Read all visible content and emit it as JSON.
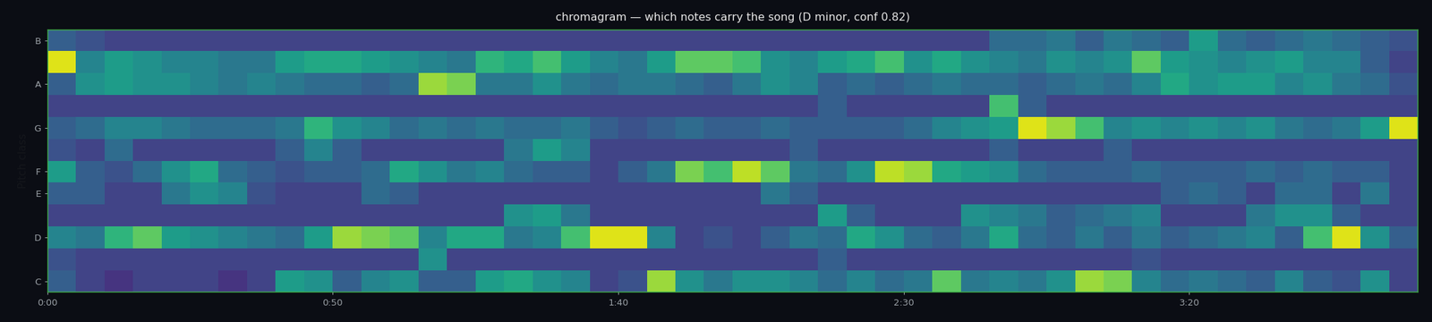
{
  "chart_data": {
    "type": "heatmap",
    "title": "chromagram — which notes carry the song (D minor, conf 0.82)",
    "y_label": "Pitch class",
    "categories": [
      "C",
      null,
      "D",
      null,
      "E",
      "F",
      null,
      "G",
      null,
      "A",
      null,
      "B"
    ],
    "x_edges": [
      0,
      5,
      10,
      15,
      20,
      25,
      30,
      35,
      40,
      45,
      50,
      55,
      60,
      65,
      70,
      75,
      80,
      85,
      90,
      95,
      100,
      105,
      110,
      115,
      120,
      125,
      130,
      135,
      140,
      145,
      150,
      155,
      160,
      165,
      170,
      175,
      180,
      185,
      190,
      195,
      200,
      205,
      210,
      215,
      220,
      225,
      230,
      235,
      240
    ],
    "xlim": [
      0,
      240
    ],
    "xticks": [
      {
        "value": 0,
        "label": "0:00"
      },
      {
        "value": 50,
        "label": "0:50"
      },
      {
        "value": 100,
        "label": "1:40"
      },
      {
        "value": 150,
        "label": "2:30"
      },
      {
        "value": 200,
        "label": "3:20"
      }
    ],
    "color": "viridis",
    "color_range": [
      0,
      1
    ],
    "cells": [
      [
        0.3,
        0.2,
        0.15,
        0.2,
        0.2,
        0.2,
        0.15,
        0.2,
        0.55,
        0.5,
        0.3,
        0.45,
        0.5,
        0.3,
        0.3,
        0.55,
        0.6,
        0.5,
        0.45,
        0.2,
        0.25,
        0.85,
        0.5,
        0.4,
        0.5,
        0.5,
        0.45,
        0.35,
        0.45,
        0.35,
        0.4,
        0.75,
        0.4,
        0.45,
        0.4,
        0.5,
        0.85,
        0.8,
        0.45,
        0.35,
        0.4,
        0.35,
        0.3,
        0.45,
        0.3,
        0.25,
        0.5,
        0.2
      ],
      [
        0.25,
        0.2,
        0.2,
        0.2,
        0.2,
        0.2,
        0.2,
        0.2,
        0.2,
        0.2,
        0.2,
        0.2,
        0.2,
        0.5,
        0.2,
        0.2,
        0.2,
        0.2,
        0.2,
        0.2,
        0.2,
        0.2,
        0.2,
        0.2,
        0.2,
        0.2,
        0.2,
        0.3,
        0.2,
        0.2,
        0.2,
        0.2,
        0.2,
        0.2,
        0.2,
        0.2,
        0.2,
        0.2,
        0.25,
        0.2,
        0.2,
        0.2,
        0.2,
        0.2,
        0.2,
        0.2,
        0.2,
        0.2
      ],
      [
        0.45,
        0.4,
        0.65,
        0.75,
        0.55,
        0.5,
        0.45,
        0.4,
        0.35,
        0.55,
        0.85,
        0.8,
        0.75,
        0.45,
        0.6,
        0.6,
        0.4,
        0.45,
        0.7,
        0.95,
        0.95,
        0.45,
        0.2,
        0.25,
        0.2,
        0.3,
        0.4,
        0.35,
        0.6,
        0.5,
        0.35,
        0.3,
        0.4,
        0.6,
        0.35,
        0.3,
        0.4,
        0.3,
        0.4,
        0.3,
        0.35,
        0.4,
        0.45,
        0.3,
        0.7,
        0.95,
        0.5,
        0.3
      ],
      [
        0.2,
        0.2,
        0.2,
        0.2,
        0.2,
        0.2,
        0.2,
        0.2,
        0.2,
        0.2,
        0.2,
        0.2,
        0.2,
        0.2,
        0.2,
        0.2,
        0.5,
        0.55,
        0.4,
        0.2,
        0.2,
        0.2,
        0.2,
        0.2,
        0.2,
        0.2,
        0.2,
        0.55,
        0.3,
        0.2,
        0.2,
        0.2,
        0.5,
        0.45,
        0.4,
        0.3,
        0.35,
        0.4,
        0.45,
        0.2,
        0.2,
        0.2,
        0.4,
        0.5,
        0.5,
        0.3,
        0.2,
        0.2
      ],
      [
        0.3,
        0.3,
        0.2,
        0.2,
        0.4,
        0.5,
        0.45,
        0.25,
        0.2,
        0.2,
        0.2,
        0.35,
        0.3,
        0.2,
        0.2,
        0.2,
        0.2,
        0.2,
        0.2,
        0.2,
        0.2,
        0.2,
        0.2,
        0.2,
        0.2,
        0.4,
        0.3,
        0.2,
        0.2,
        0.2,
        0.2,
        0.2,
        0.2,
        0.2,
        0.2,
        0.2,
        0.2,
        0.2,
        0.2,
        0.3,
        0.35,
        0.3,
        0.2,
        0.35,
        0.35,
        0.2,
        0.4,
        0.2
      ],
      [
        0.55,
        0.3,
        0.25,
        0.35,
        0.5,
        0.6,
        0.35,
        0.3,
        0.25,
        0.3,
        0.3,
        0.35,
        0.6,
        0.5,
        0.4,
        0.45,
        0.35,
        0.3,
        0.3,
        0.2,
        0.3,
        0.4,
        0.8,
        0.7,
        0.9,
        0.75,
        0.4,
        0.35,
        0.5,
        0.9,
        0.85,
        0.6,
        0.55,
        0.5,
        0.35,
        0.3,
        0.3,
        0.3,
        0.35,
        0.3,
        0.3,
        0.3,
        0.35,
        0.3,
        0.35,
        0.3,
        0.3,
        0.2
      ],
      [
        0.25,
        0.2,
        0.35,
        0.2,
        0.2,
        0.2,
        0.2,
        0.2,
        0.3,
        0.45,
        0.3,
        0.2,
        0.2,
        0.2,
        0.2,
        0.2,
        0.4,
        0.55,
        0.45,
        0.2,
        0.2,
        0.2,
        0.2,
        0.2,
        0.2,
        0.2,
        0.3,
        0.2,
        0.2,
        0.2,
        0.2,
        0.2,
        0.2,
        0.3,
        0.2,
        0.2,
        0.2,
        0.3,
        0.2,
        0.2,
        0.2,
        0.2,
        0.2,
        0.2,
        0.2,
        0.2,
        0.2,
        0.2
      ],
      [
        0.3,
        0.35,
        0.45,
        0.45,
        0.4,
        0.35,
        0.35,
        0.35,
        0.4,
        0.65,
        0.5,
        0.45,
        0.35,
        0.4,
        0.35,
        0.4,
        0.35,
        0.35,
        0.4,
        0.3,
        0.25,
        0.3,
        0.35,
        0.3,
        0.3,
        0.35,
        0.3,
        0.3,
        0.3,
        0.3,
        0.35,
        0.45,
        0.5,
        0.55,
        0.95,
        0.85,
        0.7,
        0.45,
        0.5,
        0.45,
        0.5,
        0.45,
        0.5,
        0.4,
        0.35,
        0.4,
        0.55,
        0.95
      ],
      [
        0.2,
        0.2,
        0.2,
        0.2,
        0.2,
        0.2,
        0.2,
        0.2,
        0.2,
        0.2,
        0.2,
        0.2,
        0.2,
        0.2,
        0.2,
        0.2,
        0.2,
        0.2,
        0.2,
        0.2,
        0.2,
        0.2,
        0.2,
        0.2,
        0.2,
        0.2,
        0.2,
        0.3,
        0.2,
        0.2,
        0.2,
        0.2,
        0.2,
        0.7,
        0.3,
        0.2,
        0.2,
        0.2,
        0.2,
        0.2,
        0.2,
        0.2,
        0.2,
        0.2,
        0.2,
        0.2,
        0.2,
        0.2
      ],
      [
        0.3,
        0.5,
        0.55,
        0.5,
        0.5,
        0.45,
        0.4,
        0.45,
        0.4,
        0.35,
        0.35,
        0.3,
        0.35,
        0.85,
        0.8,
        0.4,
        0.4,
        0.5,
        0.4,
        0.35,
        0.4,
        0.4,
        0.35,
        0.3,
        0.4,
        0.5,
        0.45,
        0.3,
        0.35,
        0.3,
        0.35,
        0.4,
        0.35,
        0.35,
        0.3,
        0.35,
        0.4,
        0.35,
        0.45,
        0.6,
        0.5,
        0.55,
        0.55,
        0.45,
        0.5,
        0.4,
        0.35,
        0.25
      ],
      [
        0.95,
        0.45,
        0.55,
        0.5,
        0.45,
        0.45,
        0.4,
        0.4,
        0.55,
        0.6,
        0.6,
        0.55,
        0.5,
        0.45,
        0.4,
        0.65,
        0.6,
        0.7,
        0.55,
        0.45,
        0.4,
        0.55,
        0.75,
        0.75,
        0.7,
        0.5,
        0.45,
        0.55,
        0.6,
        0.7,
        0.5,
        0.6,
        0.5,
        0.45,
        0.4,
        0.5,
        0.45,
        0.5,
        0.75,
        0.55,
        0.5,
        0.45,
        0.5,
        0.55,
        0.45,
        0.45,
        0.3,
        0.2
      ],
      [
        0.3,
        0.25,
        0.2,
        0.2,
        0.2,
        0.2,
        0.2,
        0.2,
        0.2,
        0.2,
        0.2,
        0.2,
        0.2,
        0.2,
        0.2,
        0.2,
        0.2,
        0.2,
        0.2,
        0.2,
        0.2,
        0.2,
        0.2,
        0.2,
        0.2,
        0.2,
        0.2,
        0.2,
        0.2,
        0.2,
        0.2,
        0.2,
        0.2,
        0.35,
        0.35,
        0.4,
        0.3,
        0.4,
        0.35,
        0.3,
        0.55,
        0.35,
        0.3,
        0.35,
        0.4,
        0.35,
        0.3,
        0.25
      ]
    ]
  }
}
